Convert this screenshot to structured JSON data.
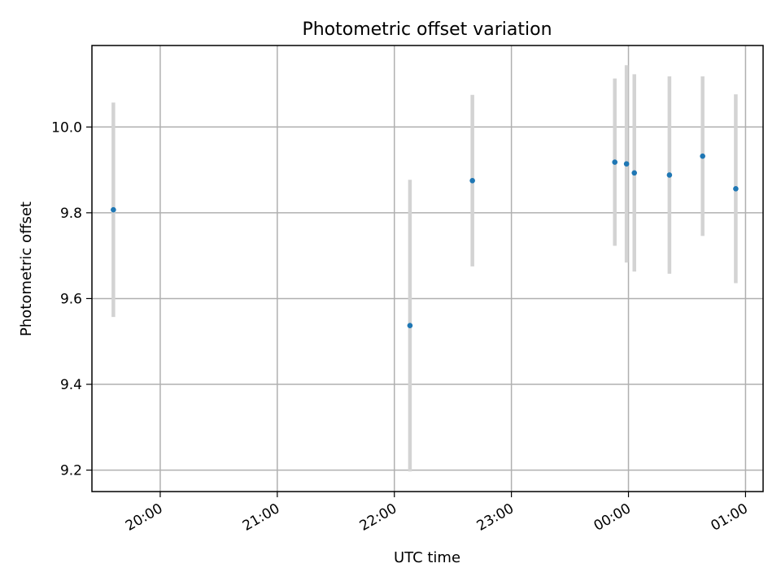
{
  "chart_data": {
    "type": "scatter",
    "title": "Photometric offset variation",
    "xlabel": "UTC time",
    "ylabel": "Photometric offset",
    "x_ticks": [
      "20:00",
      "21:00",
      "22:00",
      "23:00",
      "00:00",
      "01:00"
    ],
    "y_ticks": [
      "9.2",
      "9.4",
      "9.6",
      "9.8",
      "10.0"
    ],
    "xlim": [
      "19:25",
      "01:09"
    ],
    "ylim": [
      9.15,
      10.19
    ],
    "grid": true,
    "marker_color": "#1f77b4",
    "errorbar_color": "#d3d3d3",
    "series": [
      {
        "x": [
          "19:36",
          "22:08",
          "22:40",
          "23:53",
          "23:59",
          "00:03",
          "00:21",
          "00:38",
          "00:55"
        ],
        "y": [
          9.807,
          9.537,
          9.875,
          9.918,
          9.914,
          9.893,
          9.888,
          9.932,
          9.856
        ],
        "yerr": [
          0.25,
          0.34,
          0.2,
          0.195,
          0.23,
          0.23,
          0.23,
          0.186,
          0.22
        ]
      }
    ]
  }
}
